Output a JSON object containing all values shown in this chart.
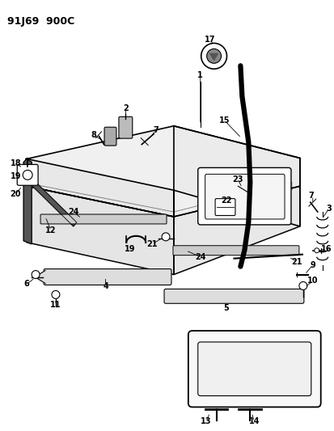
{
  "title": "91J69  900C",
  "bg_color": "#ffffff",
  "line_color": "#000000",
  "figsize": [
    4.14,
    5.33
  ],
  "dpi": 100
}
